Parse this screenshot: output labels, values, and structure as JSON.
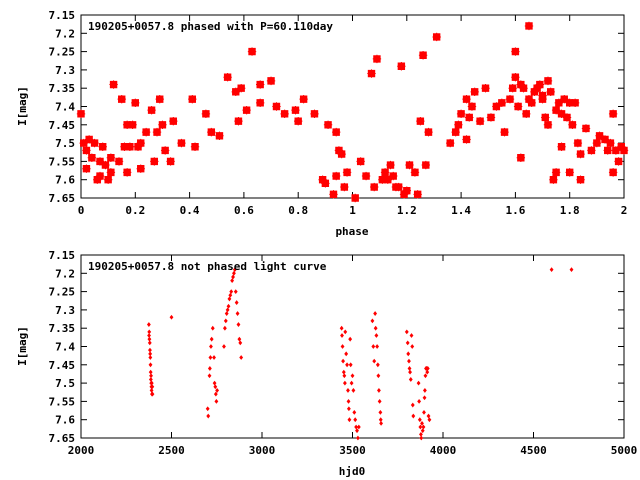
{
  "chart_data": [
    {
      "type": "scatter",
      "title": "190205+0057.8 phased with P=60.110day",
      "xlabel": "phase",
      "ylabel": "I[mag]",
      "xlim": [
        0,
        2
      ],
      "ylim": [
        7.65,
        7.15
      ],
      "y_inverted": true,
      "xticks": [
        "0",
        "0.2",
        "0.4",
        "0.6",
        "0.8",
        "1",
        "1.2",
        "1.4",
        "1.6",
        "1.8",
        "2"
      ],
      "yticks": [
        "7.15",
        "7.2",
        "7.25",
        "7.3",
        "7.35",
        "7.4",
        "7.45",
        "7.5",
        "7.55",
        "7.6",
        "7.65"
      ],
      "marker": "star",
      "color": "#ff0000",
      "points": [
        [
          0.0,
          7.42
        ],
        [
          0.01,
          7.5
        ],
        [
          0.02,
          7.57
        ],
        [
          0.02,
          7.52
        ],
        [
          0.03,
          7.49
        ],
        [
          0.04,
          7.54
        ],
        [
          0.05,
          7.5
        ],
        [
          0.06,
          7.6
        ],
        [
          0.07,
          7.59
        ],
        [
          0.07,
          7.55
        ],
        [
          0.08,
          7.51
        ],
        [
          0.09,
          7.56
        ],
        [
          0.1,
          7.6
        ],
        [
          0.11,
          7.58
        ],
        [
          0.11,
          7.54
        ],
        [
          0.12,
          7.34
        ],
        [
          0.14,
          7.55
        ],
        [
          0.15,
          7.38
        ],
        [
          0.16,
          7.51
        ],
        [
          0.17,
          7.58
        ],
        [
          0.17,
          7.45
        ],
        [
          0.18,
          7.51
        ],
        [
          0.19,
          7.45
        ],
        [
          0.2,
          7.39
        ],
        [
          0.21,
          7.51
        ],
        [
          0.22,
          7.57
        ],
        [
          0.22,
          7.5
        ],
        [
          0.24,
          7.47
        ],
        [
          0.26,
          7.41
        ],
        [
          0.27,
          7.55
        ],
        [
          0.28,
          7.47
        ],
        [
          0.29,
          7.38
        ],
        [
          0.3,
          7.45
        ],
        [
          0.31,
          7.52
        ],
        [
          0.33,
          7.55
        ],
        [
          0.34,
          7.44
        ],
        [
          0.37,
          7.5
        ],
        [
          0.41,
          7.38
        ],
        [
          0.42,
          7.51
        ],
        [
          0.46,
          7.42
        ],
        [
          0.48,
          7.47
        ],
        [
          0.51,
          7.48
        ],
        [
          0.54,
          7.32
        ],
        [
          0.57,
          7.36
        ],
        [
          0.58,
          7.44
        ],
        [
          0.59,
          7.35
        ],
        [
          0.61,
          7.41
        ],
        [
          0.63,
          7.25
        ],
        [
          0.66,
          7.39
        ],
        [
          0.66,
          7.34
        ],
        [
          0.7,
          7.33
        ],
        [
          0.72,
          7.4
        ],
        [
          0.75,
          7.42
        ],
        [
          0.79,
          7.41
        ],
        [
          0.8,
          7.44
        ],
        [
          0.82,
          7.38
        ],
        [
          0.86,
          7.42
        ],
        [
          0.89,
          7.6
        ],
        [
          0.9,
          7.61
        ],
        [
          0.91,
          7.45
        ],
        [
          0.93,
          7.64
        ],
        [
          0.94,
          7.59
        ],
        [
          0.94,
          7.47
        ],
        [
          0.95,
          7.52
        ],
        [
          0.96,
          7.53
        ],
        [
          0.97,
          7.62
        ],
        [
          0.98,
          7.58
        ],
        [
          1.01,
          7.65
        ],
        [
          1.03,
          7.55
        ],
        [
          1.05,
          7.59
        ],
        [
          1.07,
          7.31
        ],
        [
          1.08,
          7.62
        ],
        [
          1.09,
          7.27
        ],
        [
          1.11,
          7.6
        ],
        [
          1.12,
          7.58
        ],
        [
          1.13,
          7.6
        ],
        [
          1.14,
          7.56
        ],
        [
          1.15,
          7.59
        ],
        [
          1.16,
          7.62
        ],
        [
          1.17,
          7.62
        ],
        [
          1.18,
          7.29
        ],
        [
          1.19,
          7.64
        ],
        [
          1.2,
          7.63
        ],
        [
          1.21,
          7.56
        ],
        [
          1.23,
          7.58
        ],
        [
          1.24,
          7.64
        ],
        [
          1.25,
          7.44
        ],
        [
          1.26,
          7.26
        ],
        [
          1.27,
          7.56
        ],
        [
          1.28,
          7.47
        ],
        [
          1.31,
          7.21
        ],
        [
          1.36,
          7.5
        ],
        [
          1.38,
          7.47
        ],
        [
          1.39,
          7.45
        ],
        [
          1.4,
          7.42
        ],
        [
          1.42,
          7.49
        ],
        [
          1.42,
          7.38
        ],
        [
          1.43,
          7.43
        ],
        [
          1.44,
          7.4
        ],
        [
          1.45,
          7.36
        ],
        [
          1.47,
          7.44
        ],
        [
          1.49,
          7.35
        ],
        [
          1.51,
          7.43
        ],
        [
          1.53,
          7.4
        ],
        [
          1.55,
          7.39
        ],
        [
          1.56,
          7.47
        ],
        [
          1.58,
          7.38
        ],
        [
          1.59,
          7.35
        ],
        [
          1.6,
          7.32
        ],
        [
          1.6,
          7.25
        ],
        [
          1.61,
          7.4
        ],
        [
          1.62,
          7.34
        ],
        [
          1.62,
          7.54
        ],
        [
          1.63,
          7.35
        ],
        [
          1.64,
          7.42
        ],
        [
          1.65,
          7.38
        ],
        [
          1.65,
          7.18
        ],
        [
          1.66,
          7.39
        ],
        [
          1.67,
          7.36
        ],
        [
          1.68,
          7.35
        ],
        [
          1.69,
          7.34
        ],
        [
          1.7,
          7.37
        ],
        [
          1.7,
          7.38
        ],
        [
          1.71,
          7.43
        ],
        [
          1.72,
          7.33
        ],
        [
          1.72,
          7.45
        ],
        [
          1.73,
          7.36
        ],
        [
          1.74,
          7.6
        ],
        [
          1.75,
          7.41
        ],
        [
          1.75,
          7.58
        ],
        [
          1.76,
          7.39
        ],
        [
          1.77,
          7.42
        ],
        [
          1.77,
          7.51
        ],
        [
          1.78,
          7.38
        ],
        [
          1.79,
          7.43
        ],
        [
          1.8,
          7.39
        ],
        [
          1.8,
          7.58
        ],
        [
          1.81,
          7.45
        ],
        [
          1.82,
          7.39
        ],
        [
          1.83,
          7.5
        ],
        [
          1.84,
          7.53
        ],
        [
          1.84,
          7.6
        ],
        [
          1.86,
          7.46
        ],
        [
          1.88,
          7.52
        ],
        [
          1.9,
          7.5
        ],
        [
          1.91,
          7.48
        ],
        [
          1.93,
          7.49
        ],
        [
          1.94,
          7.52
        ],
        [
          1.95,
          7.5
        ],
        [
          1.96,
          7.58
        ],
        [
          1.96,
          7.42
        ],
        [
          1.97,
          7.52
        ],
        [
          1.98,
          7.55
        ],
        [
          1.99,
          7.51
        ],
        [
          2.0,
          7.52
        ]
      ]
    },
    {
      "type": "scatter",
      "title": "190205+0057.8 not phased light curve",
      "xlabel": "hjd0",
      "ylabel": "I[mag]",
      "xlim": [
        2000,
        5000
      ],
      "ylim": [
        7.65,
        7.15
      ],
      "y_inverted": true,
      "xticks": [
        "2000",
        "2500",
        "3000",
        "3500",
        "4000",
        "4500",
        "5000"
      ],
      "yticks": [
        "7.15",
        "7.2",
        "7.25",
        "7.3",
        "7.35",
        "7.4",
        "7.45",
        "7.5",
        "7.55",
        "7.6",
        "7.65"
      ],
      "marker": "diamond",
      "color": "#ff0000",
      "points": [
        [
          2375,
          7.34
        ],
        [
          2377,
          7.36
        ],
        [
          2378,
          7.38
        ],
        [
          2380,
          7.39
        ],
        [
          2381,
          7.41
        ],
        [
          2382,
          7.42
        ],
        [
          2384,
          7.45
        ],
        [
          2385,
          7.47
        ],
        [
          2386,
          7.49
        ],
        [
          2388,
          7.5
        ],
        [
          2389,
          7.51
        ],
        [
          2390,
          7.52
        ],
        [
          2392,
          7.53
        ],
        [
          2394,
          7.51
        ],
        [
          2395,
          7.53
        ],
        [
          2376,
          7.37
        ],
        [
          2383,
          7.43
        ],
        [
          2387,
          7.48
        ],
        [
          2391,
          7.5
        ],
        [
          2500,
          7.32
        ],
        [
          2700,
          7.57
        ],
        [
          2703,
          7.59
        ],
        [
          2710,
          7.48
        ],
        [
          2712,
          7.46
        ],
        [
          2715,
          7.43
        ],
        [
          2718,
          7.4
        ],
        [
          2722,
          7.38
        ],
        [
          2728,
          7.35
        ],
        [
          2735,
          7.43
        ],
        [
          2738,
          7.5
        ],
        [
          2742,
          7.51
        ],
        [
          2745,
          7.53
        ],
        [
          2748,
          7.55
        ],
        [
          2752,
          7.52
        ],
        [
          2790,
          7.4
        ],
        [
          2795,
          7.35
        ],
        [
          2800,
          7.33
        ],
        [
          2805,
          7.31
        ],
        [
          2810,
          7.3
        ],
        [
          2815,
          7.29
        ],
        [
          2820,
          7.27
        ],
        [
          2825,
          7.26
        ],
        [
          2830,
          7.25
        ],
        [
          2835,
          7.22
        ],
        [
          2840,
          7.21
        ],
        [
          2845,
          7.2
        ],
        [
          2850,
          7.19
        ],
        [
          2855,
          7.25
        ],
        [
          2860,
          7.28
        ],
        [
          2865,
          7.31
        ],
        [
          2870,
          7.34
        ],
        [
          2875,
          7.38
        ],
        [
          2880,
          7.39
        ],
        [
          2885,
          7.43
        ],
        [
          3440,
          7.35
        ],
        [
          3442,
          7.37
        ],
        [
          3445,
          7.4
        ],
        [
          3448,
          7.44
        ],
        [
          3452,
          7.47
        ],
        [
          3455,
          7.48
        ],
        [
          3458,
          7.5
        ],
        [
          3460,
          7.36
        ],
        [
          3465,
          7.42
        ],
        [
          3470,
          7.45
        ],
        [
          3475,
          7.52
        ],
        [
          3478,
          7.55
        ],
        [
          3480,
          7.57
        ],
        [
          3483,
          7.6
        ],
        [
          3487,
          7.38
        ],
        [
          3490,
          7.45
        ],
        [
          3495,
          7.5
        ],
        [
          3500,
          7.48
        ],
        [
          3505,
          7.52
        ],
        [
          3510,
          7.58
        ],
        [
          3515,
          7.6
        ],
        [
          3520,
          7.62
        ],
        [
          3525,
          7.63
        ],
        [
          3530,
          7.65
        ],
        [
          3535,
          7.62
        ],
        [
          3610,
          7.33
        ],
        [
          3615,
          7.4
        ],
        [
          3620,
          7.44
        ],
        [
          3625,
          7.31
        ],
        [
          3628,
          7.35
        ],
        [
          3632,
          7.37
        ],
        [
          3636,
          7.4
        ],
        [
          3640,
          7.45
        ],
        [
          3643,
          7.48
        ],
        [
          3646,
          7.52
        ],
        [
          3650,
          7.55
        ],
        [
          3654,
          7.58
        ],
        [
          3656,
          7.6
        ],
        [
          3658,
          7.61
        ],
        [
          3800,
          7.36
        ],
        [
          3805,
          7.39
        ],
        [
          3808,
          7.42
        ],
        [
          3812,
          7.44
        ],
        [
          3815,
          7.46
        ],
        [
          3818,
          7.47
        ],
        [
          3822,
          7.49
        ],
        [
          3826,
          7.37
        ],
        [
          3830,
          7.4
        ],
        [
          3833,
          7.56
        ],
        [
          3836,
          7.59
        ],
        [
          3865,
          7.5
        ],
        [
          3868,
          7.55
        ],
        [
          3872,
          7.6
        ],
        [
          3875,
          7.62
        ],
        [
          3878,
          7.64
        ],
        [
          3880,
          7.65
        ],
        [
          3884,
          7.61
        ],
        [
          3888,
          7.63
        ],
        [
          3892,
          7.62
        ],
        [
          3895,
          7.58
        ],
        [
          3898,
          7.54
        ],
        [
          3900,
          7.52
        ],
        [
          3903,
          7.48
        ],
        [
          3906,
          7.46
        ],
        [
          3910,
          7.46
        ],
        [
          3913,
          7.47
        ],
        [
          3916,
          7.46
        ],
        [
          3920,
          7.59
        ],
        [
          3925,
          7.6
        ],
        [
          4600,
          7.19
        ],
        [
          4710,
          7.19
        ]
      ]
    }
  ]
}
